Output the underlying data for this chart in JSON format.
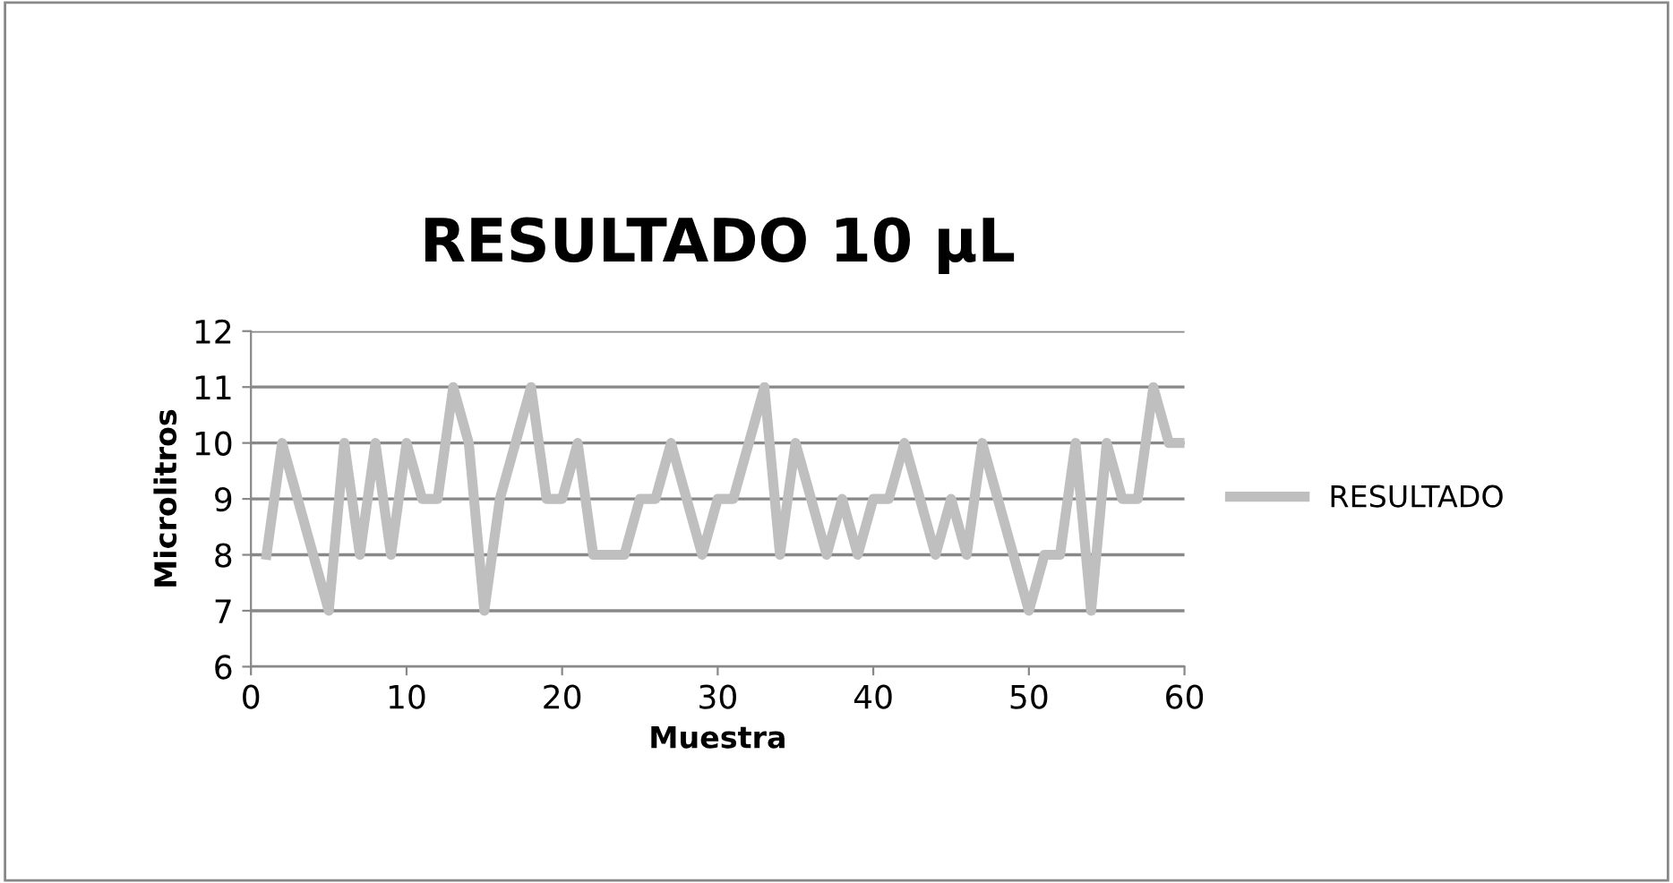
{
  "chart_data": {
    "type": "line",
    "title": "RESULTADO 10 µL",
    "xlabel": "Muestra",
    "ylabel": "Microlitros",
    "x": [
      1,
      2,
      3,
      4,
      5,
      6,
      7,
      8,
      9,
      10,
      11,
      12,
      13,
      14,
      15,
      16,
      17,
      18,
      19,
      20,
      21,
      22,
      23,
      24,
      25,
      26,
      27,
      28,
      29,
      30,
      31,
      32,
      33,
      34,
      35,
      36,
      37,
      38,
      39,
      40,
      41,
      42,
      43,
      44,
      45,
      46,
      47,
      48,
      49,
      50,
      51,
      52,
      53,
      54,
      55,
      56,
      57,
      58,
      59,
      60
    ],
    "series": [
      {
        "name": "RESULTADO",
        "color": "#bfbfbf",
        "values": [
          8,
          10,
          9,
          8,
          7,
          10,
          8,
          10,
          8,
          10,
          9,
          9,
          11,
          10,
          7,
          9,
          10,
          11,
          9,
          9,
          10,
          8,
          8,
          8,
          9,
          9,
          10,
          9,
          8,
          9,
          9,
          10,
          11,
          8,
          10,
          9,
          8,
          9,
          8,
          9,
          9,
          10,
          9,
          8,
          9,
          8,
          10,
          9,
          8,
          7,
          8,
          8,
          10,
          7,
          10,
          9,
          9,
          11,
          10,
          10
        ]
      }
    ],
    "xlim": [
      0,
      60
    ],
    "xticks": [
      0,
      10,
      20,
      30,
      40,
      50,
      60
    ],
    "ylim": [
      6,
      12
    ],
    "yticks": [
      6,
      7,
      8,
      9,
      10,
      11,
      12
    ],
    "grid": "y",
    "legend": "right",
    "marker": "none",
    "line_style": "solid"
  }
}
